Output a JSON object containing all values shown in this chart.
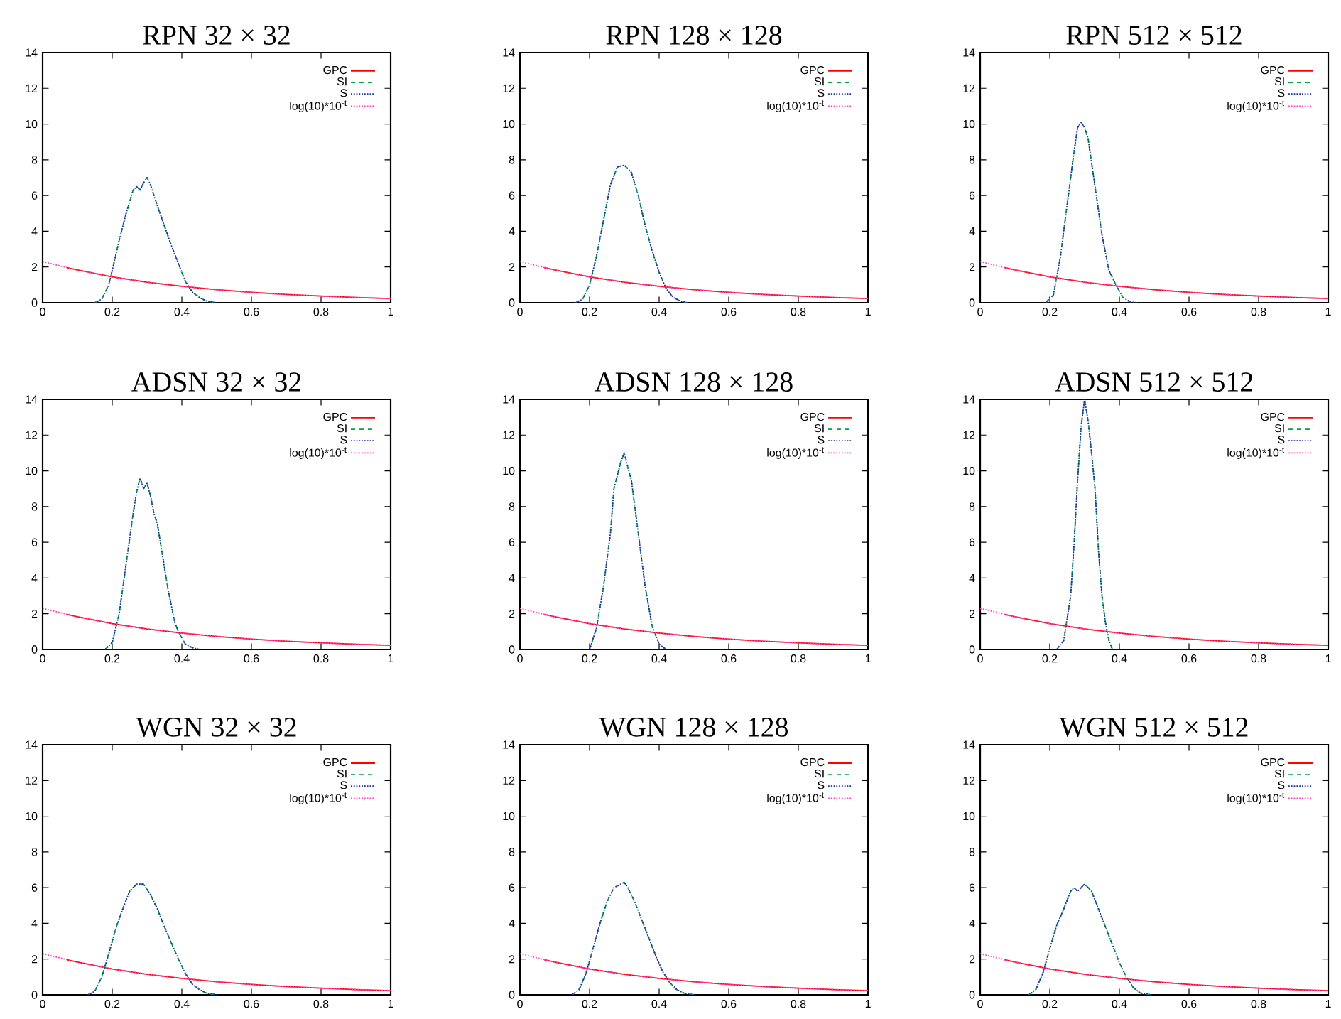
{
  "chart_data": [
    {
      "type": "line",
      "title": "RPN 32 × 32",
      "xlim": [
        0,
        1
      ],
      "ylim": [
        0,
        14
      ],
      "xticks": [
        0,
        0.2,
        0.4,
        0.6,
        0.8,
        1
      ],
      "yticks": [
        0,
        2,
        4,
        6,
        8,
        10,
        12,
        14
      ],
      "legend": "top right",
      "grid": false,
      "series": [
        {
          "name": "GPC",
          "color": "#ff0000",
          "line_style": "solid",
          "x": [
            0.07,
            0.1,
            0.2,
            0.3,
            0.4,
            0.5,
            0.6,
            0.7,
            0.8,
            0.9,
            1.0
          ],
          "values": [
            1.96,
            1.83,
            1.45,
            1.15,
            0.92,
            0.73,
            0.58,
            0.46,
            0.37,
            0.29,
            0.23
          ]
        },
        {
          "name": "SI",
          "color": "#00a050",
          "line_style": "dashed",
          "x": [
            0.15,
            0.17,
            0.19,
            0.2,
            0.22,
            0.24,
            0.26,
            0.27,
            0.28,
            0.29,
            0.3,
            0.31,
            0.33,
            0.35,
            0.37,
            0.39,
            0.41,
            0.43,
            0.45,
            0.47,
            0.5
          ],
          "values": [
            0,
            0.2,
            1,
            1.8,
            3.5,
            5,
            6.3,
            6.5,
            6.3,
            6.7,
            7.0,
            6.6,
            5.4,
            4.3,
            3.2,
            2.2,
            1.2,
            0.6,
            0.3,
            0.1,
            0
          ]
        },
        {
          "name": "S",
          "color": "#2030a0",
          "line_style": "dotted",
          "x": [
            0.15,
            0.17,
            0.19,
            0.2,
            0.22,
            0.24,
            0.26,
            0.27,
            0.28,
            0.29,
            0.3,
            0.31,
            0.33,
            0.35,
            0.37,
            0.39,
            0.41,
            0.43,
            0.45,
            0.47,
            0.5
          ],
          "values": [
            0,
            0.2,
            1,
            1.8,
            3.5,
            5,
            6.3,
            6.5,
            6.3,
            6.7,
            7.0,
            6.6,
            5.4,
            4.3,
            3.2,
            2.2,
            1.2,
            0.6,
            0.3,
            0.1,
            0
          ]
        },
        {
          "name": "log(10)*10$^{-t}$",
          "color": "#ff40c0",
          "line_style": "dotted",
          "x": [
            0,
            0.1,
            0.2,
            0.3,
            0.4,
            0.5,
            0.6,
            0.7,
            0.8,
            0.9,
            1.0
          ],
          "values": [
            2.3,
            1.83,
            1.45,
            1.15,
            0.92,
            0.73,
            0.58,
            0.46,
            0.37,
            0.29,
            0.23
          ]
        }
      ]
    },
    {
      "type": "line",
      "title": "RPN 128 × 128",
      "xlim": [
        0,
        1
      ],
      "ylim": [
        0,
        14
      ],
      "xticks": [
        0,
        0.2,
        0.4,
        0.6,
        0.8,
        1
      ],
      "yticks": [
        0,
        2,
        4,
        6,
        8,
        10,
        12,
        14
      ],
      "legend": "top right",
      "grid": false,
      "series": [
        {
          "name": "GPC",
          "color": "#ff0000",
          "line_style": "solid",
          "x": [
            0.07,
            0.1,
            0.2,
            0.3,
            0.4,
            0.5,
            0.6,
            0.7,
            0.8,
            0.9,
            1.0
          ],
          "values": [
            1.96,
            1.83,
            1.45,
            1.15,
            0.92,
            0.73,
            0.58,
            0.46,
            0.37,
            0.29,
            0.23
          ]
        },
        {
          "name": "SI",
          "color": "#00a050",
          "line_style": "dashed",
          "x": [
            0.16,
            0.18,
            0.2,
            0.22,
            0.24,
            0.26,
            0.28,
            0.3,
            0.32,
            0.34,
            0.36,
            0.38,
            0.4,
            0.42,
            0.44,
            0.46,
            0.48
          ],
          "values": [
            0,
            0.2,
            1.0,
            2.6,
            4.6,
            6.6,
            7.6,
            7.7,
            7.3,
            6.0,
            4.3,
            2.9,
            1.7,
            0.8,
            0.3,
            0.1,
            0
          ]
        },
        {
          "name": "S",
          "color": "#2030a0",
          "line_style": "dotted",
          "x": [
            0.16,
            0.18,
            0.2,
            0.22,
            0.24,
            0.26,
            0.28,
            0.3,
            0.32,
            0.34,
            0.36,
            0.38,
            0.4,
            0.42,
            0.44,
            0.46,
            0.48
          ],
          "values": [
            0,
            0.2,
            1.0,
            2.6,
            4.6,
            6.6,
            7.6,
            7.7,
            7.3,
            6.0,
            4.3,
            2.9,
            1.7,
            0.8,
            0.3,
            0.1,
            0
          ]
        },
        {
          "name": "log(10)*10$^{-t}$",
          "color": "#ff40c0",
          "line_style": "dotted",
          "x": [
            0,
            0.1,
            0.2,
            0.3,
            0.4,
            0.5,
            0.6,
            0.7,
            0.8,
            0.9,
            1.0
          ],
          "values": [
            2.3,
            1.83,
            1.45,
            1.15,
            0.92,
            0.73,
            0.58,
            0.46,
            0.37,
            0.29,
            0.23
          ]
        }
      ]
    },
    {
      "type": "line",
      "title": "RPN 512 × 512",
      "xlim": [
        0,
        1
      ],
      "ylim": [
        0,
        14
      ],
      "xticks": [
        0,
        0.2,
        0.4,
        0.6,
        0.8,
        1
      ],
      "yticks": [
        0,
        2,
        4,
        6,
        8,
        10,
        12,
        14
      ],
      "legend": "top right",
      "grid": false,
      "series": [
        {
          "name": "GPC",
          "color": "#ff0000",
          "line_style": "solid",
          "x": [
            0.07,
            0.1,
            0.2,
            0.3,
            0.4,
            0.5,
            0.6,
            0.7,
            0.8,
            0.9,
            1.0
          ],
          "values": [
            1.96,
            1.83,
            1.45,
            1.15,
            0.92,
            0.73,
            0.58,
            0.46,
            0.37,
            0.29,
            0.23
          ]
        },
        {
          "name": "SI",
          "color": "#00a050",
          "line_style": "dashed",
          "x": [
            0.19,
            0.2,
            0.21,
            0.23,
            0.25,
            0.27,
            0.28,
            0.29,
            0.3,
            0.31,
            0.33,
            0.35,
            0.37,
            0.39,
            0.41,
            0.43,
            0.45
          ],
          "values": [
            0,
            0.3,
            0.4,
            2.5,
            5.5,
            8.5,
            9.8,
            10.1,
            9.8,
            9.2,
            6.5,
            3.8,
            1.8,
            1.0,
            0.3,
            0.05,
            0
          ]
        },
        {
          "name": "S",
          "color": "#2030a0",
          "line_style": "dotted",
          "x": [
            0.19,
            0.2,
            0.21,
            0.23,
            0.25,
            0.27,
            0.28,
            0.29,
            0.3,
            0.31,
            0.33,
            0.35,
            0.37,
            0.39,
            0.41,
            0.43,
            0.45
          ],
          "values": [
            0,
            0.3,
            0.4,
            2.5,
            5.5,
            8.5,
            9.8,
            10.1,
            9.8,
            9.2,
            6.5,
            3.8,
            1.8,
            1.0,
            0.3,
            0.05,
            0
          ]
        },
        {
          "name": "log(10)*10$^{-t}$",
          "color": "#ff40c0",
          "line_style": "dotted",
          "x": [
            0,
            0.1,
            0.2,
            0.3,
            0.4,
            0.5,
            0.6,
            0.7,
            0.8,
            0.9,
            1.0
          ],
          "values": [
            2.3,
            1.83,
            1.45,
            1.15,
            0.92,
            0.73,
            0.58,
            0.46,
            0.37,
            0.29,
            0.23
          ]
        }
      ]
    },
    {
      "type": "line",
      "title": "ADSN 32 × 32",
      "xlim": [
        0,
        1
      ],
      "ylim": [
        0,
        14
      ],
      "xticks": [
        0,
        0.2,
        0.4,
        0.6,
        0.8,
        1
      ],
      "yticks": [
        0,
        2,
        4,
        6,
        8,
        10,
        12,
        14
      ],
      "legend": "top right",
      "grid": false,
      "series": [
        {
          "name": "GPC",
          "color": "#ff0000",
          "line_style": "solid",
          "x": [
            0.07,
            0.1,
            0.2,
            0.3,
            0.4,
            0.5,
            0.6,
            0.7,
            0.8,
            0.9,
            1.0
          ],
          "values": [
            1.96,
            1.83,
            1.45,
            1.15,
            0.92,
            0.73,
            0.58,
            0.46,
            0.37,
            0.29,
            0.23
          ]
        },
        {
          "name": "SI",
          "color": "#00a050",
          "line_style": "dashed",
          "x": [
            0.18,
            0.2,
            0.22,
            0.24,
            0.26,
            0.27,
            0.28,
            0.29,
            0.3,
            0.31,
            0.32,
            0.33,
            0.34,
            0.36,
            0.38,
            0.39,
            0.41,
            0.43,
            0.45
          ],
          "values": [
            0,
            0.4,
            2,
            4.8,
            7.6,
            8.8,
            9.6,
            9.0,
            9.3,
            8.6,
            7.6,
            7.0,
            5.8,
            3.4,
            1.5,
            1.0,
            0.3,
            0.1,
            0
          ]
        },
        {
          "name": "S",
          "color": "#2030a0",
          "line_style": "dotted",
          "x": [
            0.18,
            0.2,
            0.22,
            0.24,
            0.26,
            0.27,
            0.28,
            0.29,
            0.3,
            0.31,
            0.32,
            0.33,
            0.34,
            0.36,
            0.38,
            0.39,
            0.41,
            0.43,
            0.45
          ],
          "values": [
            0,
            0.4,
            2,
            4.8,
            7.6,
            8.8,
            9.6,
            9.0,
            9.3,
            8.6,
            7.6,
            7.0,
            5.8,
            3.4,
            1.5,
            1.0,
            0.3,
            0.1,
            0
          ]
        },
        {
          "name": "log(10)*10$^{-t}$",
          "color": "#ff40c0",
          "line_style": "dotted",
          "x": [
            0,
            0.1,
            0.2,
            0.3,
            0.4,
            0.5,
            0.6,
            0.7,
            0.8,
            0.9,
            1.0
          ],
          "values": [
            2.3,
            1.83,
            1.45,
            1.15,
            0.92,
            0.73,
            0.58,
            0.46,
            0.37,
            0.29,
            0.23
          ]
        }
      ]
    },
    {
      "type": "line",
      "title": "ADSN 128 × 128",
      "xlim": [
        0,
        1
      ],
      "ylim": [
        0,
        14
      ],
      "xticks": [
        0,
        0.2,
        0.4,
        0.6,
        0.8,
        1
      ],
      "yticks": [
        0,
        2,
        4,
        6,
        8,
        10,
        12,
        14
      ],
      "legend": "top right",
      "grid": false,
      "series": [
        {
          "name": "GPC",
          "color": "#ff0000",
          "line_style": "solid",
          "x": [
            0.07,
            0.1,
            0.2,
            0.3,
            0.4,
            0.5,
            0.6,
            0.7,
            0.8,
            0.9,
            1.0
          ],
          "values": [
            1.96,
            1.83,
            1.45,
            1.15,
            0.92,
            0.73,
            0.58,
            0.46,
            0.37,
            0.29,
            0.23
          ]
        },
        {
          "name": "SI",
          "color": "#00a050",
          "line_style": "dashed",
          "x": [
            0.2,
            0.22,
            0.24,
            0.26,
            0.27,
            0.29,
            0.3,
            0.31,
            0.32,
            0.34,
            0.36,
            0.38,
            0.4,
            0.42
          ],
          "values": [
            0,
            1.2,
            3.5,
            6.5,
            9.0,
            10.5,
            11.0,
            10.2,
            9.5,
            6.5,
            3.5,
            1.3,
            0.3,
            0
          ]
        },
        {
          "name": "S",
          "color": "#2030a0",
          "line_style": "dotted",
          "x": [
            0.2,
            0.22,
            0.24,
            0.26,
            0.27,
            0.29,
            0.3,
            0.31,
            0.32,
            0.34,
            0.36,
            0.38,
            0.4,
            0.42
          ],
          "values": [
            0,
            1.2,
            3.5,
            6.5,
            9.0,
            10.5,
            11.0,
            10.2,
            9.5,
            6.5,
            3.5,
            1.3,
            0.3,
            0
          ]
        },
        {
          "name": "log(10)*10$^{-t}$",
          "color": "#ff40c0",
          "line_style": "dotted",
          "x": [
            0,
            0.1,
            0.2,
            0.3,
            0.4,
            0.5,
            0.6,
            0.7,
            0.8,
            0.9,
            1.0
          ],
          "values": [
            2.3,
            1.83,
            1.45,
            1.15,
            0.92,
            0.73,
            0.58,
            0.46,
            0.37,
            0.29,
            0.23
          ]
        }
      ]
    },
    {
      "type": "line",
      "title": "ADSN 512 × 512",
      "xlim": [
        0,
        1
      ],
      "ylim": [
        0,
        14
      ],
      "xticks": [
        0,
        0.2,
        0.4,
        0.6,
        0.8,
        1
      ],
      "yticks": [
        0,
        2,
        4,
        6,
        8,
        10,
        12,
        14
      ],
      "legend": "top right",
      "grid": false,
      "series": [
        {
          "name": "GPC",
          "color": "#ff0000",
          "line_style": "solid",
          "x": [
            0.07,
            0.1,
            0.2,
            0.3,
            0.4,
            0.5,
            0.6,
            0.7,
            0.8,
            0.9,
            1.0
          ],
          "values": [
            1.96,
            1.83,
            1.45,
            1.15,
            0.92,
            0.73,
            0.58,
            0.46,
            0.37,
            0.29,
            0.23
          ]
        },
        {
          "name": "SI",
          "color": "#00a050",
          "line_style": "dashed",
          "x": [
            0.22,
            0.24,
            0.26,
            0.27,
            0.28,
            0.29,
            0.3,
            0.31,
            0.32,
            0.33,
            0.34,
            0.35,
            0.36,
            0.37,
            0.38
          ],
          "values": [
            0,
            0.5,
            3.0,
            6,
            9.5,
            12.5,
            14.0,
            12.8,
            11.0,
            9.0,
            5.5,
            3.0,
            1.5,
            0.5,
            0
          ]
        },
        {
          "name": "S",
          "color": "#2030a0",
          "line_style": "dotted",
          "x": [
            0.22,
            0.24,
            0.26,
            0.27,
            0.28,
            0.29,
            0.3,
            0.31,
            0.32,
            0.33,
            0.34,
            0.35,
            0.36,
            0.37,
            0.38
          ],
          "values": [
            0,
            0.5,
            3.0,
            6,
            9.5,
            12.5,
            14.0,
            12.8,
            11.0,
            9.0,
            5.5,
            3.0,
            1.5,
            0.5,
            0
          ]
        },
        {
          "name": "log(10)*10$^{-t}$",
          "color": "#ff40c0",
          "line_style": "dotted",
          "x": [
            0,
            0.1,
            0.2,
            0.3,
            0.4,
            0.5,
            0.6,
            0.7,
            0.8,
            0.9,
            1.0
          ],
          "values": [
            2.3,
            1.83,
            1.45,
            1.15,
            0.92,
            0.73,
            0.58,
            0.46,
            0.37,
            0.29,
            0.23
          ]
        }
      ]
    },
    {
      "type": "line",
      "title": "WGN 32 × 32",
      "xlim": [
        0,
        1
      ],
      "ylim": [
        0,
        14
      ],
      "xticks": [
        0,
        0.2,
        0.4,
        0.6,
        0.8,
        1
      ],
      "yticks": [
        0,
        2,
        4,
        6,
        8,
        10,
        12,
        14
      ],
      "legend": "top right",
      "grid": false,
      "series": [
        {
          "name": "GPC",
          "color": "#ff0000",
          "line_style": "solid",
          "x": [
            0.07,
            0.1,
            0.2,
            0.3,
            0.4,
            0.5,
            0.6,
            0.7,
            0.8,
            0.9,
            1.0
          ],
          "values": [
            1.96,
            1.83,
            1.45,
            1.15,
            0.92,
            0.73,
            0.58,
            0.46,
            0.37,
            0.29,
            0.23
          ]
        },
        {
          "name": "SI",
          "color": "#00a050",
          "line_style": "dashed",
          "x": [
            0.13,
            0.15,
            0.17,
            0.19,
            0.21,
            0.23,
            0.25,
            0.27,
            0.29,
            0.31,
            0.33,
            0.35,
            0.37,
            0.39,
            0.41,
            0.43,
            0.45,
            0.47,
            0.5
          ],
          "values": [
            0,
            0.2,
            1,
            2.3,
            3.7,
            4.8,
            5.8,
            6.2,
            6.2,
            5.6,
            4.8,
            3.8,
            2.9,
            2.0,
            1.2,
            0.6,
            0.3,
            0.1,
            0
          ]
        },
        {
          "name": "S",
          "color": "#2030a0",
          "line_style": "dotted",
          "x": [
            0.13,
            0.15,
            0.17,
            0.19,
            0.21,
            0.23,
            0.25,
            0.27,
            0.29,
            0.31,
            0.33,
            0.35,
            0.37,
            0.39,
            0.41,
            0.43,
            0.45,
            0.47,
            0.5
          ],
          "values": [
            0,
            0.2,
            1,
            2.3,
            3.7,
            4.8,
            5.8,
            6.2,
            6.2,
            5.6,
            4.8,
            3.8,
            2.9,
            2.0,
            1.2,
            0.6,
            0.3,
            0.1,
            0
          ]
        },
        {
          "name": "log(10)*10$^{-t}$",
          "color": "#ff40c0",
          "line_style": "dotted",
          "x": [
            0,
            0.1,
            0.2,
            0.3,
            0.4,
            0.5,
            0.6,
            0.7,
            0.8,
            0.9,
            1.0
          ],
          "values": [
            2.3,
            1.83,
            1.45,
            1.15,
            0.92,
            0.73,
            0.58,
            0.46,
            0.37,
            0.29,
            0.23
          ]
        }
      ]
    },
    {
      "type": "line",
      "title": "WGN 128 × 128",
      "xlim": [
        0,
        1
      ],
      "ylim": [
        0,
        14
      ],
      "xticks": [
        0,
        0.2,
        0.4,
        0.6,
        0.8,
        1
      ],
      "yticks": [
        0,
        2,
        4,
        6,
        8,
        10,
        12,
        14
      ],
      "legend": "top right",
      "grid": false,
      "series": [
        {
          "name": "GPC",
          "color": "#ff0000",
          "line_style": "solid",
          "x": [
            0.07,
            0.1,
            0.2,
            0.3,
            0.4,
            0.5,
            0.6,
            0.7,
            0.8,
            0.9,
            1.0
          ],
          "values": [
            1.96,
            1.83,
            1.45,
            1.15,
            0.92,
            0.73,
            0.58,
            0.46,
            0.37,
            0.29,
            0.23
          ]
        },
        {
          "name": "SI",
          "color": "#00a050",
          "line_style": "dashed",
          "x": [
            0.15,
            0.17,
            0.19,
            0.21,
            0.23,
            0.25,
            0.27,
            0.29,
            0.3,
            0.31,
            0.33,
            0.35,
            0.37,
            0.39,
            0.41,
            0.43,
            0.45,
            0.47,
            0.5
          ],
          "values": [
            0,
            0.3,
            1.2,
            2.6,
            4.0,
            5.2,
            6.0,
            6.2,
            6.3,
            6.0,
            5.2,
            4.2,
            3.2,
            2.2,
            1.3,
            0.7,
            0.3,
            0.1,
            0
          ]
        },
        {
          "name": "S",
          "color": "#2030a0",
          "line_style": "dotted",
          "x": [
            0.15,
            0.17,
            0.19,
            0.21,
            0.23,
            0.25,
            0.27,
            0.29,
            0.3,
            0.31,
            0.33,
            0.35,
            0.37,
            0.39,
            0.41,
            0.43,
            0.45,
            0.47,
            0.5
          ],
          "values": [
            0,
            0.3,
            1.2,
            2.6,
            4.0,
            5.2,
            6.0,
            6.2,
            6.3,
            6.0,
            5.2,
            4.2,
            3.2,
            2.2,
            1.3,
            0.7,
            0.3,
            0.1,
            0
          ]
        },
        {
          "name": "log(10)*10$^{-t}$",
          "color": "#ff40c0",
          "line_style": "dotted",
          "x": [
            0,
            0.1,
            0.2,
            0.3,
            0.4,
            0.5,
            0.6,
            0.7,
            0.8,
            0.9,
            1.0
          ],
          "values": [
            2.3,
            1.83,
            1.45,
            1.15,
            0.92,
            0.73,
            0.58,
            0.46,
            0.37,
            0.29,
            0.23
          ]
        }
      ]
    },
    {
      "type": "line",
      "title": "WGN 512 × 512",
      "xlim": [
        0,
        1
      ],
      "ylim": [
        0,
        14
      ],
      "xticks": [
        0,
        0.2,
        0.4,
        0.6,
        0.8,
        1
      ],
      "yticks": [
        0,
        2,
        4,
        6,
        8,
        10,
        12,
        14
      ],
      "legend": "top right",
      "grid": false,
      "series": [
        {
          "name": "GPC",
          "color": "#ff0000",
          "line_style": "solid",
          "x": [
            0.07,
            0.1,
            0.2,
            0.3,
            0.4,
            0.5,
            0.6,
            0.7,
            0.8,
            0.9,
            1.0
          ],
          "values": [
            1.96,
            1.83,
            1.45,
            1.15,
            0.92,
            0.73,
            0.58,
            0.46,
            0.37,
            0.29,
            0.23
          ]
        },
        {
          "name": "SI",
          "color": "#00a050",
          "line_style": "dashed",
          "x": [
            0.14,
            0.16,
            0.18,
            0.2,
            0.22,
            0.24,
            0.26,
            0.27,
            0.28,
            0.3,
            0.32,
            0.34,
            0.36,
            0.38,
            0.4,
            0.42,
            0.44,
            0.46,
            0.49
          ],
          "values": [
            0,
            0.3,
            1.2,
            2.6,
            3.9,
            4.8,
            5.8,
            6.0,
            5.8,
            6.2,
            5.8,
            4.8,
            3.8,
            2.8,
            1.8,
            1.0,
            0.4,
            0.1,
            0
          ]
        },
        {
          "name": "S",
          "color": "#2030a0",
          "line_style": "dotted",
          "x": [
            0.14,
            0.16,
            0.18,
            0.2,
            0.22,
            0.24,
            0.26,
            0.27,
            0.28,
            0.3,
            0.32,
            0.34,
            0.36,
            0.38,
            0.4,
            0.42,
            0.44,
            0.46,
            0.49
          ],
          "values": [
            0,
            0.3,
            1.2,
            2.6,
            3.9,
            4.8,
            5.8,
            6.0,
            5.8,
            6.2,
            5.8,
            4.8,
            3.8,
            2.8,
            1.8,
            1.0,
            0.4,
            0.1,
            0
          ]
        },
        {
          "name": "log(10)*10$^{-t}$",
          "color": "#ff40c0",
          "line_style": "dotted",
          "x": [
            0,
            0.1,
            0.2,
            0.3,
            0.4,
            0.5,
            0.6,
            0.7,
            0.8,
            0.9,
            1.0
          ],
          "values": [
            2.3,
            1.83,
            1.45,
            1.15,
            0.92,
            0.73,
            0.58,
            0.46,
            0.37,
            0.29,
            0.23
          ]
        }
      ]
    }
  ]
}
